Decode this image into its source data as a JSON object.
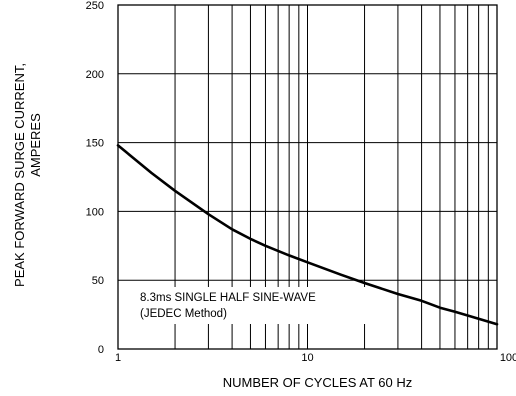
{
  "chart_data": {
    "type": "line",
    "xlabel": "NUMBER OF CYCLES AT 60 Hz",
    "ylabel_line1": "PEAK  FORWARD SURGE CURRENT,",
    "ylabel_line2": "AMPERES",
    "x_scale": "log",
    "xlim": [
      1,
      100
    ],
    "ylim": [
      0,
      250
    ],
    "x_ticks": [
      {
        "value": 1,
        "label": "1"
      },
      {
        "value": 10,
        "label": "10"
      },
      {
        "value": 100,
        "label": "100"
      }
    ],
    "y_ticks": [
      {
        "value": 0,
        "label": "0"
      },
      {
        "value": 50,
        "label": "50"
      },
      {
        "value": 100,
        "label": "100"
      },
      {
        "value": 150,
        "label": "150"
      },
      {
        "value": 200,
        "label": "200"
      },
      {
        "value": 250,
        "label": "250"
      }
    ],
    "grid": true,
    "annotation_line1": "8.3ms SINGLE HALF SINE-WAVE",
    "annotation_line2": "(JEDEC Method)",
    "series": [
      {
        "x": [
          1,
          1.2,
          1.5,
          2,
          3,
          4,
          5,
          6,
          8,
          10,
          15,
          20,
          30,
          40,
          50,
          60,
          80,
          100
        ],
        "y": [
          148,
          139,
          128,
          115,
          98,
          87,
          80,
          75,
          68,
          63,
          54,
          48,
          40,
          35,
          30,
          27,
          22,
          18
        ]
      }
    ]
  }
}
